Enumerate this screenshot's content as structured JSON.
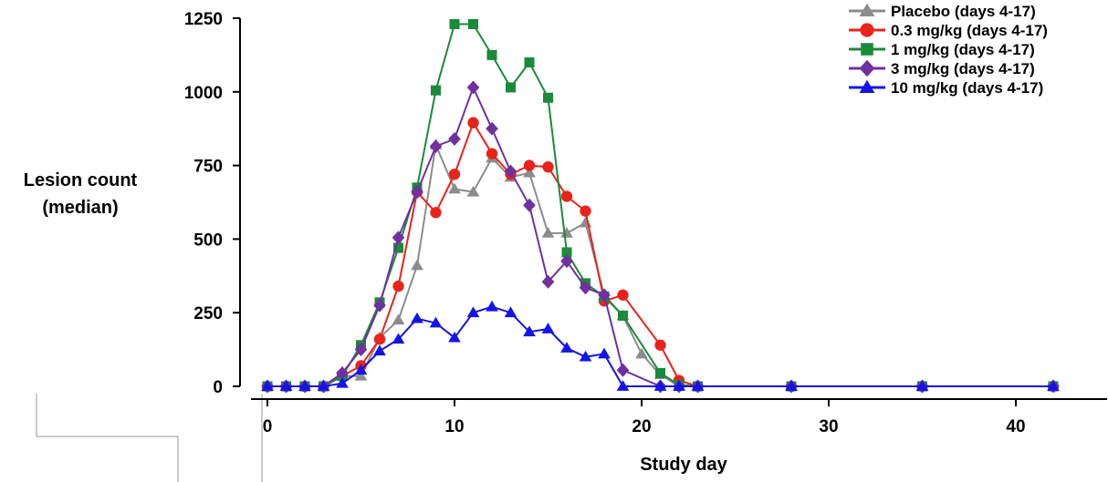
{
  "chart_data": {
    "type": "line",
    "title": "",
    "xlabel": "Study day",
    "ylabel_lines": [
      "Lesion count",
      "(median)"
    ],
    "xlim": [
      0,
      44
    ],
    "ylim": [
      0,
      1250
    ],
    "xticks": [
      0,
      10,
      20,
      30,
      40
    ],
    "yticks": [
      0,
      250,
      500,
      750,
      1000,
      1250
    ],
    "grid": false,
    "legend_position": "top-right",
    "series": [
      {
        "name": "Placebo (days 4-17)",
        "color": "#8c8c8c",
        "marker": "triangle",
        "points": [
          [
            0,
            0
          ],
          [
            1,
            0
          ],
          [
            2,
            0
          ],
          [
            3,
            0
          ],
          [
            4,
            35
          ],
          [
            5,
            35
          ],
          [
            6,
            165
          ],
          [
            7,
            225
          ],
          [
            8,
            410
          ],
          [
            9,
            820
          ],
          [
            10,
            670
          ],
          [
            11,
            660
          ],
          [
            12,
            775
          ],
          [
            13,
            710
          ],
          [
            14,
            725
          ],
          [
            15,
            520
          ],
          [
            16,
            520
          ],
          [
            17,
            555
          ],
          [
            18,
            310
          ],
          [
            19,
            240
          ],
          [
            20,
            110
          ],
          [
            21,
            40
          ],
          [
            22,
            0
          ],
          [
            23,
            0
          ],
          [
            28,
            0
          ],
          [
            35,
            0
          ],
          [
            42,
            0
          ]
        ]
      },
      {
        "name": "0.3 mg/kg (days 4-17)",
        "color": "#e8231b",
        "marker": "circle",
        "points": [
          [
            0,
            0
          ],
          [
            1,
            0
          ],
          [
            2,
            0
          ],
          [
            3,
            0
          ],
          [
            4,
            35
          ],
          [
            5,
            70
          ],
          [
            6,
            160
          ],
          [
            7,
            340
          ],
          [
            8,
            660
          ],
          [
            9,
            590
          ],
          [
            10,
            720
          ],
          [
            11,
            895
          ],
          [
            12,
            790
          ],
          [
            13,
            720
          ],
          [
            14,
            750
          ],
          [
            15,
            745
          ],
          [
            16,
            645
          ],
          [
            17,
            595
          ],
          [
            18,
            290
          ],
          [
            19,
            310
          ],
          [
            21,
            140
          ],
          [
            22,
            20
          ],
          [
            23,
            0
          ],
          [
            28,
            0
          ],
          [
            35,
            0
          ],
          [
            42,
            0
          ]
        ]
      },
      {
        "name": "1 mg/kg (days 4-17)",
        "color": "#1b8a3a",
        "marker": "square",
        "points": [
          [
            0,
            0
          ],
          [
            1,
            0
          ],
          [
            2,
            0
          ],
          [
            3,
            0
          ],
          [
            4,
            35
          ],
          [
            5,
            140
          ],
          [
            6,
            285
          ],
          [
            7,
            470
          ],
          [
            8,
            675
          ],
          [
            9,
            1005
          ],
          [
            10,
            1230
          ],
          [
            11,
            1230
          ],
          [
            12,
            1125
          ],
          [
            13,
            1015
          ],
          [
            14,
            1100
          ],
          [
            15,
            980
          ],
          [
            16,
            455
          ],
          [
            17,
            350
          ],
          [
            18,
            305
          ],
          [
            19,
            240
          ],
          [
            21,
            45
          ],
          [
            22,
            5
          ],
          [
            23,
            0
          ],
          [
            28,
            0
          ],
          [
            35,
            0
          ],
          [
            42,
            0
          ]
        ]
      },
      {
        "name": "3 mg/kg (days 4-17)",
        "color": "#7030a0",
        "marker": "diamond",
        "points": [
          [
            0,
            0
          ],
          [
            1,
            0
          ],
          [
            2,
            0
          ],
          [
            3,
            0
          ],
          [
            4,
            45
          ],
          [
            5,
            125
          ],
          [
            6,
            275
          ],
          [
            7,
            505
          ],
          [
            8,
            660
          ],
          [
            9,
            815
          ],
          [
            10,
            840
          ],
          [
            11,
            1015
          ],
          [
            12,
            875
          ],
          [
            13,
            730
          ],
          [
            14,
            615
          ],
          [
            15,
            355
          ],
          [
            16,
            425
          ],
          [
            17,
            335
          ],
          [
            18,
            310
          ],
          [
            19,
            55
          ],
          [
            21,
            0
          ],
          [
            22,
            0
          ],
          [
            23,
            0
          ],
          [
            28,
            0
          ],
          [
            35,
            0
          ],
          [
            42,
            0
          ]
        ]
      },
      {
        "name": "10 mg/kg (days 4-17)",
        "color": "#1414e6",
        "marker": "triangle",
        "points": [
          [
            0,
            0
          ],
          [
            1,
            0
          ],
          [
            2,
            0
          ],
          [
            3,
            0
          ],
          [
            4,
            10
          ],
          [
            5,
            55
          ],
          [
            6,
            120
          ],
          [
            7,
            160
          ],
          [
            8,
            230
          ],
          [
            9,
            215
          ],
          [
            10,
            165
          ],
          [
            11,
            250
          ],
          [
            12,
            270
          ],
          [
            13,
            250
          ],
          [
            14,
            185
          ],
          [
            15,
            195
          ],
          [
            16,
            130
          ],
          [
            17,
            100
          ],
          [
            18,
            110
          ],
          [
            19,
            0
          ],
          [
            21,
            0
          ],
          [
            22,
            0
          ],
          [
            23,
            0
          ],
          [
            28,
            0
          ],
          [
            35,
            0
          ],
          [
            42,
            0
          ]
        ]
      }
    ]
  }
}
